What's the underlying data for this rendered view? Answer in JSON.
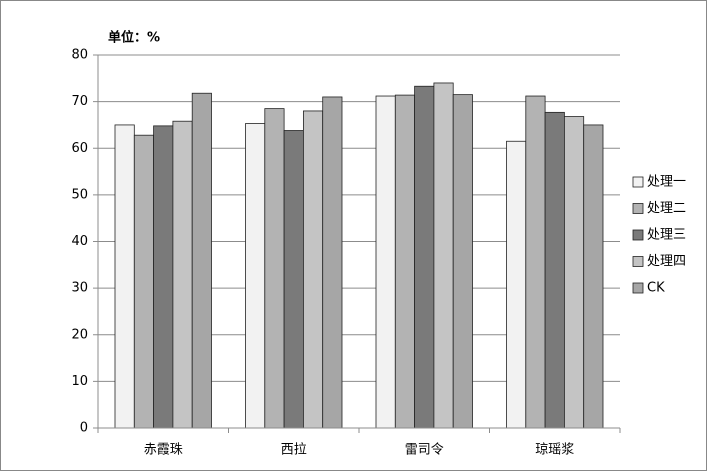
{
  "chart_data": {
    "type": "bar",
    "title": "单位：%",
    "categories": [
      "赤霞珠",
      "西拉",
      "雷司令",
      "琼瑶浆"
    ],
    "series": [
      {
        "name": "处理一",
        "color": "#f2f2f2",
        "values": [
          65.0,
          65.3,
          71.2,
          61.5
        ]
      },
      {
        "name": "处理二",
        "color": "#b3b3b3",
        "values": [
          62.8,
          68.5,
          71.4,
          71.2
        ]
      },
      {
        "name": "处理三",
        "color": "#7a7a7a",
        "values": [
          64.8,
          63.8,
          73.3,
          67.7
        ]
      },
      {
        "name": "处理四",
        "color": "#c4c4c4",
        "values": [
          65.8,
          68.0,
          74.0,
          66.8
        ]
      },
      {
        "name": "CK",
        "color": "#a6a6a6",
        "values": [
          71.8,
          71.0,
          71.5,
          65.0
        ]
      }
    ],
    "ylim": [
      0,
      80
    ],
    "yticks": [
      0,
      10,
      20,
      30,
      40,
      50,
      60,
      70,
      80
    ],
    "grid": true,
    "legend": "right"
  }
}
